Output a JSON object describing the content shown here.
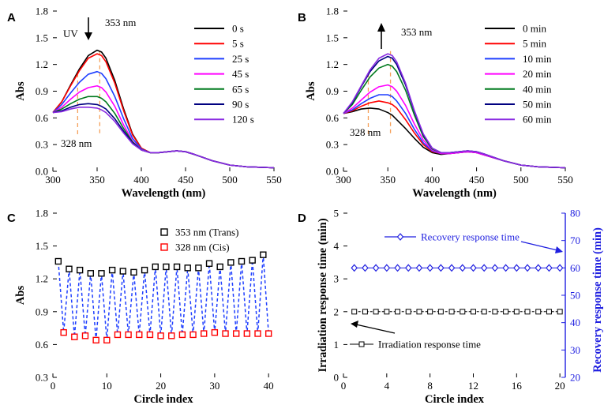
{
  "chart_data": [
    {
      "panel": "A",
      "type": "line",
      "xlabel": "Wavelength (nm)",
      "ylabel": "Abs",
      "xlim": [
        300,
        550
      ],
      "ylim": [
        0.0,
        1.8
      ],
      "xticks": [
        "300",
        "350",
        "400",
        "450",
        "500",
        "550"
      ],
      "yticks": [
        "0.0",
        "0.3",
        "0.6",
        "0.9",
        "1.2",
        "1.5",
        "1.8"
      ],
      "annotations": {
        "uv": "UV",
        "peak_label": "353 nm",
        "iso_label": "328 nm"
      },
      "x": [
        300,
        310,
        320,
        330,
        340,
        350,
        355,
        360,
        370,
        380,
        390,
        400,
        410,
        420,
        430,
        440,
        450,
        460,
        480,
        500,
        520,
        550
      ],
      "series": [
        {
          "name": "0 s",
          "color": "#000000",
          "values": [
            0.66,
            0.78,
            0.97,
            1.15,
            1.3,
            1.36,
            1.34,
            1.27,
            1.02,
            0.7,
            0.42,
            0.26,
            0.21,
            0.21,
            0.22,
            0.23,
            0.22,
            0.19,
            0.12,
            0.07,
            0.05,
            0.04
          ]
        },
        {
          "name": "5 s",
          "color": "#ff0000",
          "values": [
            0.66,
            0.78,
            0.96,
            1.13,
            1.27,
            1.32,
            1.3,
            1.23,
            0.99,
            0.68,
            0.41,
            0.26,
            0.21,
            0.21,
            0.22,
            0.23,
            0.22,
            0.19,
            0.12,
            0.07,
            0.05,
            0.04
          ]
        },
        {
          "name": "25 s",
          "color": "#1f3fff",
          "values": [
            0.66,
            0.75,
            0.88,
            1.0,
            1.09,
            1.12,
            1.1,
            1.04,
            0.84,
            0.59,
            0.37,
            0.25,
            0.21,
            0.21,
            0.22,
            0.23,
            0.22,
            0.19,
            0.12,
            0.07,
            0.05,
            0.04
          ]
        },
        {
          "name": "45 s",
          "color": "#ff00ff",
          "values": [
            0.66,
            0.72,
            0.81,
            0.89,
            0.94,
            0.96,
            0.94,
            0.89,
            0.73,
            0.52,
            0.34,
            0.24,
            0.21,
            0.21,
            0.22,
            0.23,
            0.22,
            0.19,
            0.12,
            0.07,
            0.05,
            0.04
          ]
        },
        {
          "name": "65 s",
          "color": "#007a1e",
          "values": [
            0.66,
            0.7,
            0.76,
            0.81,
            0.84,
            0.84,
            0.82,
            0.78,
            0.65,
            0.48,
            0.33,
            0.24,
            0.21,
            0.21,
            0.22,
            0.23,
            0.22,
            0.19,
            0.12,
            0.07,
            0.05,
            0.04
          ]
        },
        {
          "name": "90 s",
          "color": "#000080",
          "values": [
            0.66,
            0.68,
            0.72,
            0.75,
            0.76,
            0.75,
            0.73,
            0.7,
            0.59,
            0.45,
            0.32,
            0.24,
            0.21,
            0.21,
            0.22,
            0.23,
            0.22,
            0.19,
            0.12,
            0.07,
            0.05,
            0.04
          ]
        },
        {
          "name": "120 s",
          "color": "#8a2be2",
          "values": [
            0.66,
            0.67,
            0.7,
            0.72,
            0.72,
            0.71,
            0.69,
            0.66,
            0.56,
            0.43,
            0.31,
            0.24,
            0.21,
            0.21,
            0.22,
            0.23,
            0.22,
            0.19,
            0.12,
            0.07,
            0.05,
            0.04
          ]
        }
      ]
    },
    {
      "panel": "B",
      "type": "line",
      "xlabel": "Wavelength (nm)",
      "ylabel": "Abs",
      "xlim": [
        300,
        550
      ],
      "ylim": [
        0.0,
        1.8
      ],
      "xticks": [
        "300",
        "350",
        "400",
        "450",
        "500",
        "550"
      ],
      "yticks": [
        "0.0",
        "0.3",
        "0.6",
        "0.9",
        "1.2",
        "1.5",
        "1.8"
      ],
      "annotations": {
        "peak_label": "353 nm",
        "iso_label": "328 nm"
      },
      "x": [
        300,
        310,
        320,
        330,
        340,
        350,
        355,
        360,
        370,
        380,
        390,
        400,
        410,
        420,
        430,
        440,
        450,
        460,
        480,
        500,
        520,
        550
      ],
      "series": [
        {
          "name": "0 min",
          "color": "#000000",
          "values": [
            0.65,
            0.67,
            0.7,
            0.71,
            0.7,
            0.66,
            0.63,
            0.58,
            0.48,
            0.37,
            0.27,
            0.21,
            0.19,
            0.2,
            0.21,
            0.22,
            0.21,
            0.18,
            0.12,
            0.07,
            0.05,
            0.04
          ]
        },
        {
          "name": "5 min",
          "color": "#ff0000",
          "values": [
            0.65,
            0.68,
            0.73,
            0.77,
            0.79,
            0.77,
            0.75,
            0.71,
            0.58,
            0.43,
            0.3,
            0.22,
            0.2,
            0.2,
            0.21,
            0.22,
            0.21,
            0.18,
            0.12,
            0.07,
            0.05,
            0.04
          ]
        },
        {
          "name": "10 min",
          "color": "#1f3fff",
          "values": [
            0.65,
            0.69,
            0.76,
            0.82,
            0.86,
            0.86,
            0.84,
            0.79,
            0.65,
            0.47,
            0.32,
            0.23,
            0.2,
            0.2,
            0.21,
            0.22,
            0.21,
            0.18,
            0.12,
            0.07,
            0.05,
            0.04
          ]
        },
        {
          "name": "20 min",
          "color": "#ff00ff",
          "values": [
            0.65,
            0.71,
            0.8,
            0.89,
            0.95,
            0.97,
            0.95,
            0.9,
            0.74,
            0.53,
            0.35,
            0.24,
            0.2,
            0.2,
            0.21,
            0.22,
            0.21,
            0.18,
            0.12,
            0.07,
            0.05,
            0.04
          ]
        },
        {
          "name": "40 min",
          "color": "#007a1e",
          "values": [
            0.65,
            0.75,
            0.91,
            1.06,
            1.16,
            1.2,
            1.18,
            1.12,
            0.91,
            0.63,
            0.39,
            0.25,
            0.21,
            0.21,
            0.22,
            0.23,
            0.22,
            0.19,
            0.12,
            0.07,
            0.05,
            0.04
          ]
        },
        {
          "name": "50 min",
          "color": "#000080",
          "values": [
            0.65,
            0.77,
            0.95,
            1.12,
            1.24,
            1.29,
            1.27,
            1.2,
            0.97,
            0.67,
            0.41,
            0.26,
            0.21,
            0.21,
            0.22,
            0.23,
            0.22,
            0.19,
            0.12,
            0.07,
            0.05,
            0.04
          ]
        },
        {
          "name": "60 min",
          "color": "#8a2be2",
          "values": [
            0.65,
            0.78,
            0.96,
            1.14,
            1.27,
            1.32,
            1.3,
            1.23,
            0.99,
            0.68,
            0.42,
            0.26,
            0.21,
            0.21,
            0.22,
            0.23,
            0.22,
            0.19,
            0.12,
            0.07,
            0.05,
            0.04
          ]
        }
      ]
    },
    {
      "panel": "C",
      "type": "scatter",
      "xlabel": "Circle index",
      "ylabel": "Abs",
      "xlim": [
        0,
        41
      ],
      "ylim": [
        0.3,
        1.8
      ],
      "xticks": [
        "0",
        "10",
        "20",
        "30",
        "40"
      ],
      "yticks": [
        "0.3",
        "0.6",
        "0.9",
        "1.2",
        "1.5",
        "1.8"
      ],
      "series": [
        {
          "name": "353 nm (Trans)",
          "color": "#000000",
          "x": [
            1,
            3,
            5,
            7,
            9,
            11,
            13,
            15,
            17,
            19,
            21,
            23,
            25,
            27,
            29,
            31,
            33,
            35,
            37,
            39
          ],
          "values": [
            1.36,
            1.29,
            1.28,
            1.25,
            1.25,
            1.28,
            1.27,
            1.26,
            1.28,
            1.31,
            1.31,
            1.31,
            1.3,
            1.3,
            1.34,
            1.31,
            1.35,
            1.36,
            1.37,
            1.42
          ]
        },
        {
          "name": "328 nm (Cis)",
          "color": "#ff0000",
          "x": [
            2,
            4,
            6,
            8,
            10,
            12,
            14,
            16,
            18,
            20,
            22,
            24,
            26,
            28,
            30,
            32,
            34,
            36,
            38,
            40
          ],
          "values": [
            0.71,
            0.67,
            0.68,
            0.64,
            0.64,
            0.69,
            0.69,
            0.69,
            0.69,
            0.68,
            0.68,
            0.69,
            0.69,
            0.7,
            0.71,
            0.7,
            0.7,
            0.7,
            0.7,
            0.7
          ]
        }
      ]
    },
    {
      "panel": "D",
      "type": "scatter",
      "xlabel": "Circle index",
      "ylabel": "Irradiation response time (min)",
      "y2label": "Recovery response time (min)",
      "xlim": [
        0,
        20.5
      ],
      "ylim": [
        0,
        5
      ],
      "y2lim": [
        20,
        80
      ],
      "xticks": [
        "0",
        "4",
        "8",
        "12",
        "16",
        "20"
      ],
      "yticks": [
        "0",
        "1",
        "2",
        "3",
        "4",
        "5"
      ],
      "y2ticks": [
        "20",
        "30",
        "40",
        "50",
        "60",
        "70",
        "80"
      ],
      "series": [
        {
          "name": "Irradiation response time",
          "axis": "left",
          "color": "#000000",
          "x": [
            1,
            2,
            3,
            4,
            5,
            6,
            7,
            8,
            9,
            10,
            11,
            12,
            13,
            14,
            15,
            16,
            17,
            18,
            19,
            20
          ],
          "values": [
            2,
            2,
            2,
            2,
            2,
            2,
            2,
            2,
            2,
            2,
            2,
            2,
            2,
            2,
            2,
            2,
            2,
            2,
            2,
            2
          ]
        },
        {
          "name": "Recovery response time",
          "axis": "right",
          "color": "#1f1fe0",
          "x": [
            1,
            2,
            3,
            4,
            5,
            6,
            7,
            8,
            9,
            10,
            11,
            12,
            13,
            14,
            15,
            16,
            17,
            18,
            19,
            20
          ],
          "values": [
            60,
            60,
            60,
            60,
            60,
            60,
            60,
            60,
            60,
            60,
            60,
            60,
            60,
            60,
            60,
            60,
            60,
            60,
            60,
            60
          ]
        }
      ]
    }
  ]
}
